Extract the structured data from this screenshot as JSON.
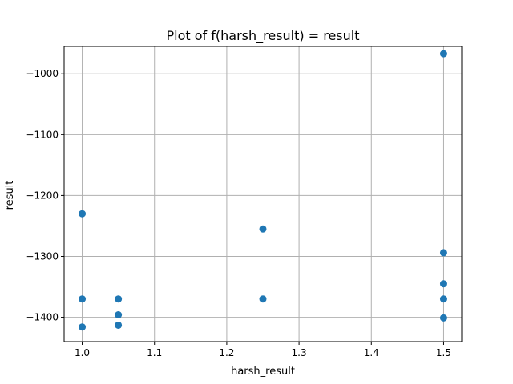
{
  "chart_data": {
    "type": "scatter",
    "title": "Plot of f(harsh_result) = result",
    "xlabel": "harsh_result",
    "ylabel": "result",
    "xlim": [
      0.975,
      1.525
    ],
    "ylim": [
      -1440,
      -955
    ],
    "xticks": [
      1.0,
      1.1,
      1.2,
      1.3,
      1.4,
      1.5
    ],
    "xtick_labels": [
      "1.0",
      "1.1",
      "1.2",
      "1.3",
      "1.4",
      "1.5"
    ],
    "yticks": [
      -1000,
      -1100,
      -1200,
      -1300,
      -1400
    ],
    "ytick_labels": [
      "−1000",
      "−1100",
      "−1200",
      "−1300",
      "−1400"
    ],
    "grid": true,
    "marker_color": "#1f77b4",
    "points": [
      {
        "x": 1.0,
        "y": -1230
      },
      {
        "x": 1.0,
        "y": -1370
      },
      {
        "x": 1.0,
        "y": -1416
      },
      {
        "x": 1.05,
        "y": -1370
      },
      {
        "x": 1.05,
        "y": -1396
      },
      {
        "x": 1.05,
        "y": -1413
      },
      {
        "x": 1.25,
        "y": -1255
      },
      {
        "x": 1.25,
        "y": -1370
      },
      {
        "x": 1.5,
        "y": -967
      },
      {
        "x": 1.5,
        "y": -1294
      },
      {
        "x": 1.5,
        "y": -1345
      },
      {
        "x": 1.5,
        "y": -1370
      },
      {
        "x": 1.5,
        "y": -1401
      }
    ]
  }
}
